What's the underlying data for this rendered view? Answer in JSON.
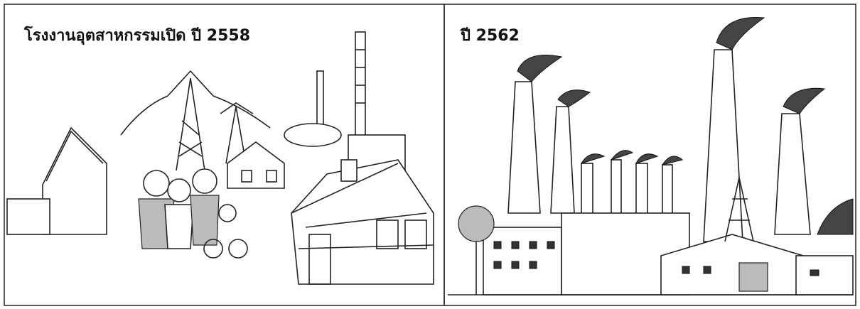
{
  "panels": [
    {
      "title": "โรงงานอุตสาหกรรมเปิด ปี 2558"
    },
    {
      "title": "ปี 2562"
    }
  ]
}
